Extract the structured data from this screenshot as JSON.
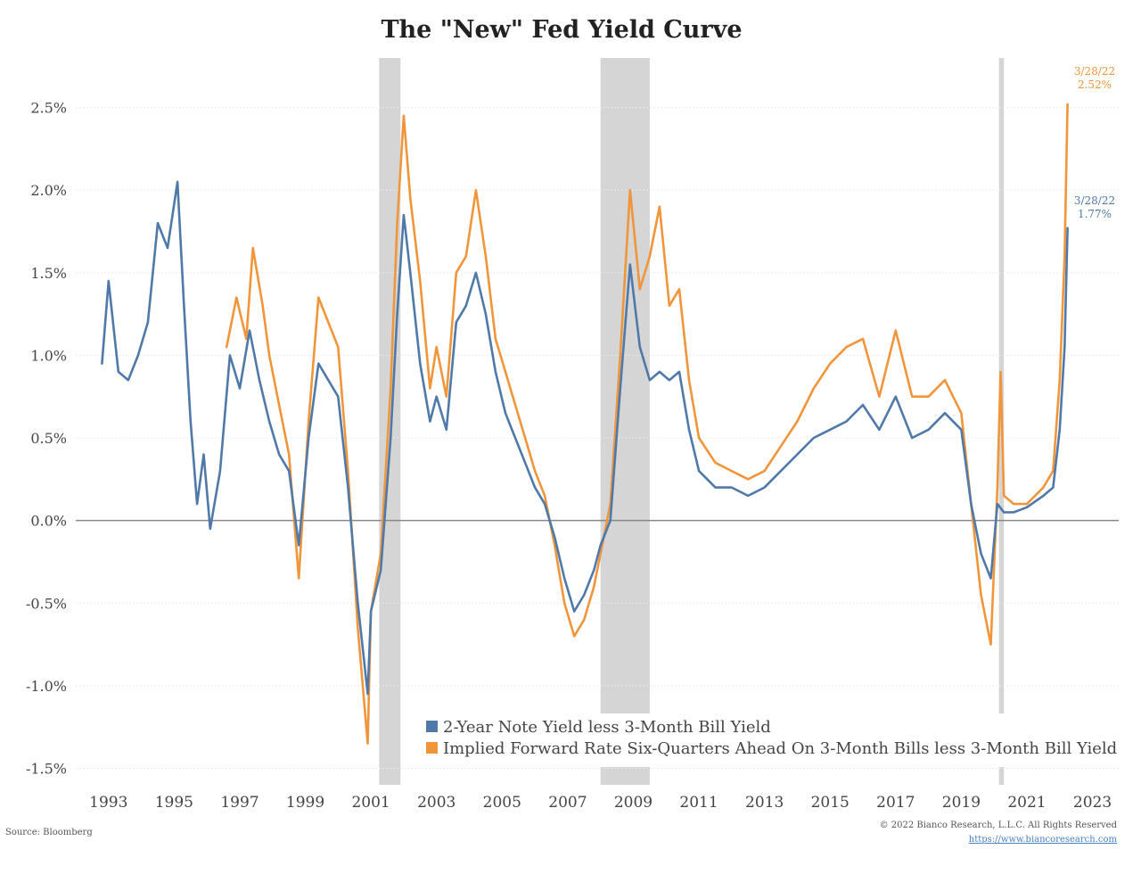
{
  "chart_data": {
    "type": "line",
    "title": "The \"New\" Fed Yield Curve",
    "xlabel": "",
    "ylabel": "",
    "xlim": [
      1992,
      2023.8
    ],
    "ylim": [
      -1.6,
      2.8
    ],
    "yticks": [
      -1.5,
      -1.0,
      -0.5,
      0.0,
      0.5,
      1.0,
      1.5,
      2.0,
      2.5
    ],
    "ytick_labels": [
      "-1.5%",
      "-1.0%",
      "-0.5%",
      "0.0%",
      "0.5%",
      "1.0%",
      "1.5%",
      "2.0%",
      "2.5%"
    ],
    "xticks": [
      1993,
      1995,
      1997,
      1999,
      2001,
      2003,
      2005,
      2007,
      2009,
      2011,
      2013,
      2015,
      2017,
      2019,
      2021,
      2023
    ],
    "xtick_labels": [
      "1993",
      "1995",
      "1997",
      "1999",
      "2001",
      "2003",
      "2005",
      "2007",
      "2009",
      "2011",
      "2013",
      "2015",
      "2017",
      "2019",
      "2021",
      "2023"
    ],
    "recessions": [
      [
        2001.25,
        2001.9
      ],
      [
        2008.0,
        2009.5
      ],
      [
        2020.15,
        2020.3
      ]
    ],
    "series": [
      {
        "name": "2-Year Note Yield less 3-Month Bill Yield",
        "color": "#4f79a8",
        "x": [
          1992.8,
          1993.0,
          1993.3,
          1993.6,
          1993.9,
          1994.2,
          1994.5,
          1994.8,
          1995.1,
          1995.3,
          1995.5,
          1995.7,
          1995.9,
          1996.1,
          1996.4,
          1996.7,
          1997.0,
          1997.3,
          1997.6,
          1997.9,
          1998.2,
          1998.5,
          1998.8,
          1999.1,
          1999.4,
          1999.7,
          2000.0,
          2000.3,
          2000.6,
          2000.9,
          2001.0,
          2001.3,
          2001.6,
          2001.8,
          2002.0,
          2002.2,
          2002.5,
          2002.8,
          2003.0,
          2003.3,
          2003.6,
          2003.9,
          2004.2,
          2004.5,
          2004.8,
          2005.1,
          2005.4,
          2005.7,
          2006.0,
          2006.3,
          2006.6,
          2006.9,
          2007.2,
          2007.5,
          2007.8,
          2008.0,
          2008.3,
          2008.6,
          2008.9,
          2009.2,
          2009.5,
          2009.8,
          2010.1,
          2010.4,
          2010.7,
          2011.0,
          2011.5,
          2012.0,
          2012.5,
          2013.0,
          2013.5,
          2014.0,
          2014.5,
          2015.0,
          2015.5,
          2016.0,
          2016.5,
          2017.0,
          2017.5,
          2018.0,
          2018.5,
          2019.0,
          2019.3,
          2019.6,
          2019.9,
          2020.1,
          2020.3,
          2020.6,
          2021.0,
          2021.5,
          2021.8,
          2022.0,
          2022.15,
          2022.24
        ],
        "y": [
          0.95,
          1.45,
          0.9,
          0.85,
          1.0,
          1.2,
          1.8,
          1.65,
          2.05,
          1.3,
          0.6,
          0.1,
          0.4,
          -0.05,
          0.3,
          1.0,
          0.8,
          1.15,
          0.85,
          0.6,
          0.4,
          0.3,
          -0.15,
          0.5,
          0.95,
          0.85,
          0.75,
          0.2,
          -0.5,
          -1.05,
          -0.55,
          -0.3,
          0.5,
          1.25,
          1.85,
          1.5,
          0.95,
          0.6,
          0.75,
          0.55,
          1.2,
          1.3,
          1.5,
          1.25,
          0.9,
          0.65,
          0.5,
          0.35,
          0.2,
          0.1,
          -0.1,
          -0.35,
          -0.55,
          -0.45,
          -0.3,
          -0.15,
          0.0,
          0.8,
          1.55,
          1.05,
          0.85,
          0.9,
          0.85,
          0.9,
          0.55,
          0.3,
          0.2,
          0.2,
          0.15,
          0.2,
          0.3,
          0.4,
          0.5,
          0.55,
          0.6,
          0.7,
          0.55,
          0.75,
          0.5,
          0.55,
          0.65,
          0.55,
          0.1,
          -0.2,
          -0.35,
          0.1,
          0.05,
          0.05,
          0.08,
          0.15,
          0.2,
          0.55,
          1.05,
          1.77
        ]
      },
      {
        "name": "Implied Forward Rate Six-Quarters Ahead On 3-Month Bills less 3-Month Bill Yield",
        "color": "#f0953a",
        "x": [
          1996.6,
          1996.9,
          1997.2,
          1997.4,
          1997.7,
          1997.9,
          1998.2,
          1998.5,
          1998.8,
          1999.1,
          1999.4,
          1999.7,
          2000.0,
          2000.3,
          2000.6,
          2000.9,
          2001.0,
          2001.3,
          2001.6,
          2001.8,
          2002.0,
          2002.2,
          2002.5,
          2002.8,
          2003.0,
          2003.3,
          2003.6,
          2003.9,
          2004.2,
          2004.5,
          2004.8,
          2005.1,
          2005.4,
          2005.7,
          2006.0,
          2006.3,
          2006.6,
          2006.9,
          2007.2,
          2007.5,
          2007.8,
          2008.0,
          2008.3,
          2008.6,
          2008.9,
          2009.2,
          2009.5,
          2009.8,
          2010.1,
          2010.4,
          2010.7,
          2011.0,
          2011.5,
          2012.0,
          2012.5,
          2013.0,
          2013.5,
          2014.0,
          2014.5,
          2015.0,
          2015.5,
          2016.0,
          2016.5,
          2017.0,
          2017.5,
          2018.0,
          2018.5,
          2019.0,
          2019.3,
          2019.6,
          2019.9,
          2020.1,
          2020.2,
          2020.3,
          2020.6,
          2021.0,
          2021.5,
          2021.8,
          2022.0,
          2022.15,
          2022.24
        ],
        "y": [
          1.05,
          1.35,
          1.1,
          1.65,
          1.3,
          1.0,
          0.7,
          0.4,
          -0.35,
          0.6,
          1.35,
          1.2,
          1.05,
          0.3,
          -0.65,
          -1.35,
          -0.55,
          -0.2,
          0.8,
          1.8,
          2.45,
          1.95,
          1.45,
          0.8,
          1.05,
          0.75,
          1.5,
          1.6,
          2.0,
          1.6,
          1.1,
          0.9,
          0.7,
          0.5,
          0.3,
          0.15,
          -0.15,
          -0.5,
          -0.7,
          -0.6,
          -0.4,
          -0.2,
          0.1,
          1.0,
          2.0,
          1.4,
          1.6,
          1.9,
          1.3,
          1.4,
          0.85,
          0.5,
          0.35,
          0.3,
          0.25,
          0.3,
          0.45,
          0.6,
          0.8,
          0.95,
          1.05,
          1.1,
          0.75,
          1.15,
          0.75,
          0.75,
          0.85,
          0.65,
          0.1,
          -0.45,
          -0.75,
          0.2,
          0.9,
          0.15,
          0.1,
          0.1,
          0.2,
          0.3,
          0.85,
          1.6,
          2.52
        ]
      }
    ],
    "annotations": [
      {
        "date_label": "3/28/22",
        "value_label": "2.52%",
        "series": 1
      },
      {
        "date_label": "3/28/22",
        "value_label": "1.77%",
        "series": 0
      }
    ],
    "legend_position": "bottom-right"
  },
  "footer": {
    "source": "Source: Bloomberg",
    "copyright": "© 2022 Bianco Research, L.L.C. All Rights Reserved",
    "url": "https://www.biancoresearch.com"
  }
}
